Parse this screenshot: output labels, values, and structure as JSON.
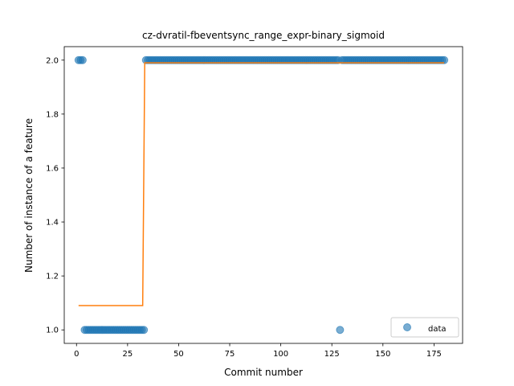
{
  "chart_data": {
    "type": "scatter",
    "title": "cz-dvratil-fbeventsync_range_expr-binary_sigmoid",
    "xlabel": "Commit number",
    "ylabel": "Number of instance of a feature",
    "xlim": [
      -6,
      189
    ],
    "ylim": [
      0.95,
      2.05
    ],
    "xticks": [
      0,
      25,
      50,
      75,
      100,
      125,
      150,
      175
    ],
    "yticks": [
      1.0,
      1.2,
      1.4,
      1.6,
      1.8,
      2.0
    ],
    "xtick_labels": [
      "0",
      "25",
      "50",
      "75",
      "100",
      "125",
      "150",
      "175"
    ],
    "ytick_labels": [
      "1.0",
      "1.2",
      "1.4",
      "1.6",
      "1.8",
      "2.0"
    ],
    "grid": false,
    "legend_position": "lower-right",
    "series": [
      {
        "name": "data",
        "kind": "scatter",
        "color": "#1f77b4",
        "x": [
          1,
          2,
          3,
          4,
          5,
          6,
          7,
          8,
          9,
          10,
          11,
          12,
          13,
          14,
          15,
          16,
          17,
          18,
          19,
          20,
          21,
          22,
          23,
          24,
          25,
          26,
          27,
          28,
          29,
          30,
          31,
          32,
          33,
          34,
          35,
          36,
          37,
          38,
          39,
          40,
          41,
          42,
          43,
          44,
          45,
          46,
          47,
          48,
          49,
          50,
          51,
          52,
          53,
          54,
          55,
          56,
          57,
          58,
          59,
          60,
          61,
          62,
          63,
          64,
          65,
          66,
          67,
          68,
          69,
          70,
          71,
          72,
          73,
          74,
          75,
          76,
          77,
          78,
          79,
          80,
          81,
          82,
          83,
          84,
          85,
          86,
          87,
          88,
          89,
          90,
          91,
          92,
          93,
          94,
          95,
          96,
          97,
          98,
          99,
          100,
          101,
          102,
          103,
          104,
          105,
          106,
          107,
          108,
          109,
          110,
          111,
          112,
          113,
          114,
          115,
          116,
          117,
          118,
          119,
          120,
          121,
          122,
          123,
          124,
          125,
          126,
          127,
          128,
          129,
          130,
          131,
          132,
          133,
          134,
          135,
          136,
          137,
          138,
          139,
          140,
          141,
          142,
          143,
          144,
          145,
          146,
          147,
          148,
          149,
          150,
          151,
          152,
          153,
          154,
          155,
          156,
          157,
          158,
          159,
          160,
          161,
          162,
          163,
          164,
          165,
          166,
          167,
          168,
          169,
          170,
          171,
          172,
          173,
          174,
          175,
          176,
          177,
          178,
          179,
          180
        ],
        "y": [
          2,
          2,
          2,
          1,
          1,
          1,
          1,
          1,
          1,
          1,
          1,
          1,
          1,
          1,
          1,
          1,
          1,
          1,
          1,
          1,
          1,
          1,
          1,
          1,
          1,
          1,
          1,
          1,
          1,
          1,
          1,
          1,
          1,
          2,
          2,
          2,
          2,
          2,
          2,
          2,
          2,
          2,
          2,
          2,
          2,
          2,
          2,
          2,
          2,
          2,
          2,
          2,
          2,
          2,
          2,
          2,
          2,
          2,
          2,
          2,
          2,
          2,
          2,
          2,
          2,
          2,
          2,
          2,
          2,
          2,
          2,
          2,
          2,
          2,
          2,
          2,
          2,
          2,
          2,
          2,
          2,
          2,
          2,
          2,
          2,
          2,
          2,
          2,
          2,
          2,
          2,
          2,
          2,
          2,
          2,
          2,
          2,
          2,
          2,
          2,
          2,
          2,
          2,
          2,
          2,
          2,
          2,
          2,
          2,
          2,
          2,
          2,
          2,
          2,
          2,
          2,
          2,
          2,
          2,
          2,
          2,
          2,
          2,
          2,
          2,
          2,
          2,
          2,
          1,
          2,
          2,
          2,
          2,
          2,
          2,
          2,
          2,
          2,
          2,
          2,
          2,
          2,
          2,
          2,
          2,
          2,
          2,
          2,
          2,
          2,
          2,
          2,
          2,
          2,
          2,
          2,
          2,
          2,
          2,
          2,
          2,
          2,
          2,
          2,
          2,
          2,
          2,
          2,
          2,
          2,
          2,
          2,
          2,
          2,
          2,
          2,
          2,
          2,
          2,
          2
        ]
      },
      {
        "name": "",
        "kind": "line",
        "color": "#ff7f0e",
        "x": [
          1,
          32.4,
          33.4,
          180
        ],
        "y": [
          1.09,
          1.09,
          1.99,
          1.99
        ]
      }
    ]
  }
}
